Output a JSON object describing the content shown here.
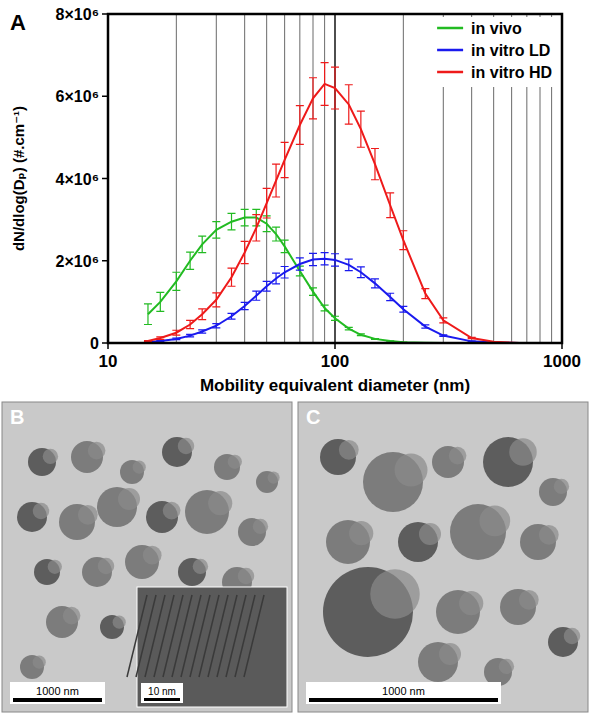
{
  "chart_data": {
    "type": "line",
    "panel_label": "A",
    "xlabel": "Mobility equivalent diameter (nm)",
    "ylabel": "dN/dlog(Dₚ) (#.cm⁻¹)",
    "log": "x",
    "grid": "x",
    "legend": "upper right",
    "xlim": [
      10,
      1000
    ],
    "xticks": [
      10,
      100,
      1000
    ],
    "ylim": [
      0,
      8000000
    ],
    "yticks": [
      0,
      {
        "value": 2000000,
        "label": "2×10⁶"
      },
      {
        "value": 4000000,
        "label": "4×10⁶"
      },
      {
        "value": 6000000,
        "label": "6×10⁶"
      },
      {
        "value": 8000000,
        "label": "8×10⁶"
      }
    ],
    "x": [
      15,
      17,
      20,
      23,
      26,
      30,
      35,
      40,
      45,
      50,
      55,
      60,
      70,
      80,
      90,
      100,
      115,
      130,
      150,
      175,
      200,
      250,
      300,
      400,
      500,
      650
    ],
    "series": [
      {
        "name": "in vivo",
        "color": "#22bb22",
        "values": [
          700000,
          1000000,
          1500000,
          2000000,
          2400000,
          2750000,
          2950000,
          3050000,
          3050000,
          2900000,
          2650000,
          2350000,
          1750000,
          1250000,
          850000,
          600000,
          350000,
          200000,
          100000,
          50000,
          20000,
          5000,
          0,
          0,
          0,
          0
        ],
        "errors": [
          250000,
          230000,
          220000,
          210000,
          200000,
          200000,
          200000,
          200000,
          200000,
          190000,
          170000,
          150000,
          120000,
          90000,
          70000,
          50000,
          30000,
          20000,
          10000,
          5000,
          3000,
          1000,
          0,
          0,
          0,
          0
        ]
      },
      {
        "name": "in vitro LD",
        "color": "#1a1aee",
        "values": [
          20000,
          50000,
          100000,
          180000,
          280000,
          420000,
          650000,
          900000,
          1150000,
          1380000,
          1570000,
          1720000,
          1920000,
          2030000,
          2050000,
          2020000,
          1900000,
          1720000,
          1450000,
          1120000,
          820000,
          400000,
          180000,
          40000,
          10000,
          0
        ],
        "errors": [
          5000,
          10000,
          20000,
          30000,
          40000,
          50000,
          70000,
          90000,
          110000,
          120000,
          130000,
          140000,
          150000,
          150000,
          150000,
          150000,
          140000,
          130000,
          110000,
          90000,
          70000,
          40000,
          20000,
          5000,
          2000,
          0
        ]
      },
      {
        "name": "in vitro HD",
        "color": "#ee1a1a",
        "values": [
          50000,
          120000,
          250000,
          450000,
          700000,
          1050000,
          1600000,
          2200000,
          2800000,
          3400000,
          3950000,
          4450000,
          5300000,
          5950000,
          6300000,
          6200000,
          5800000,
          5200000,
          4350000,
          3350000,
          2500000,
          1200000,
          550000,
          120000,
          30000,
          0
        ],
        "errors": [
          10000,
          30000,
          60000,
          100000,
          130000,
          170000,
          220000,
          270000,
          320000,
          360000,
          400000,
          430000,
          470000,
          500000,
          520000,
          510000,
          480000,
          440000,
          380000,
          300000,
          230000,
          120000,
          60000,
          15000,
          5000,
          0
        ]
      }
    ]
  },
  "micrographs": [
    {
      "label": "B",
      "scale_bar": "1000 nm",
      "inset_scale_bar": "10 nm"
    },
    {
      "label": "C",
      "scale_bar": "1000 nm"
    }
  ]
}
